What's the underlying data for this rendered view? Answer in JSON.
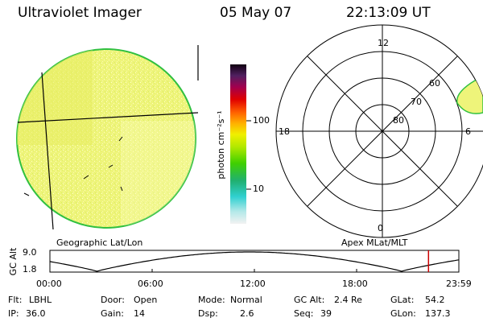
{
  "header": {
    "instrument": "Ultraviolet Imager",
    "date": "05 May 07",
    "time": "22:13:09 UT"
  },
  "colorbar": {
    "unit_label": "photon cm⁻²s⁻¹",
    "tick_labels": [
      "100",
      "10"
    ]
  },
  "left_panel": {
    "caption": "Geographic Lat/Lon"
  },
  "right_panel": {
    "caption": "Apex MLat/MLT",
    "mlt_labels": {
      "top": "12",
      "left": "18",
      "right": "6",
      "bottom": "0"
    },
    "mlat_labels": [
      "60",
      "70",
      "80"
    ]
  },
  "altitude_plot": {
    "ylabel": "GC Alt",
    "ymax_label": "9.0",
    "ymin_label": "1.8",
    "time_ticks": [
      "00:00",
      "06:00",
      "12:00",
      "18:00",
      "23:59"
    ],
    "current_time_marker": "22:13:09",
    "marker_color": "#cc0000"
  },
  "info": {
    "flt_label": "Flt:",
    "flt_value": "LBHL",
    "ip_label": "IP:",
    "ip_value": "36.0",
    "door_label": "Door:",
    "door_value": "Open",
    "gain_label": "Gain:",
    "gain_value": "14",
    "mode_label": "Mode:",
    "mode_value": "Normal",
    "dsp_label": "Dsp:",
    "dsp_value": "2.6",
    "gcalt_label": "GC Alt:",
    "gcalt_value": "2.4 Re",
    "seq_label": "Seq:",
    "seq_value": "39",
    "glat_label": "GLat:",
    "glat_value": "54.2",
    "glon_label": "GLon:",
    "glon_value": "137.3"
  }
}
